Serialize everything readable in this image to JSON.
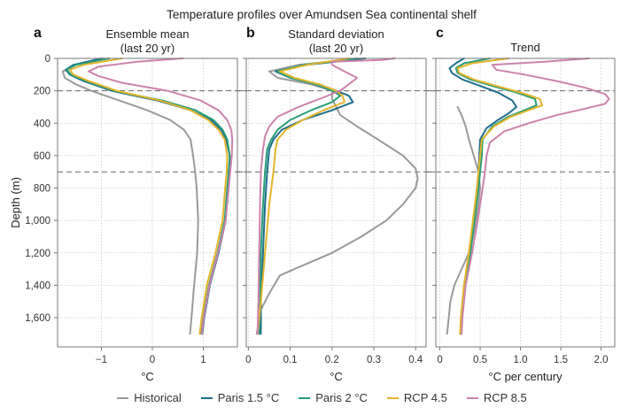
{
  "chart_data": {
    "type": "line",
    "title": "Temperature profiles over Amundsen Sea continental shelf",
    "ylabel": "Depth (m)",
    "ylim": [
      0,
      1780
    ],
    "y_inverted": true,
    "yticks": [
      0,
      200,
      400,
      600,
      800,
      1000,
      1200,
      1400,
      1600
    ],
    "ytick_labels": [
      "0",
      "200",
      "400",
      "600",
      "800",
      "1,000",
      "1,200",
      "1,400",
      "1,600"
    ],
    "reference_lines_depth": [
      200,
      700
    ],
    "grid": true,
    "legend_position": "bottom-center",
    "legend": [
      {
        "name": "Historical",
        "color": "#9a9a9a"
      },
      {
        "name": "Paris 1.5 °C",
        "color": "#1f6e8c"
      },
      {
        "name": "Paris 2 °C",
        "color": "#2a9d7a"
      },
      {
        "name": "RCP 4.5",
        "color": "#e3b52a"
      },
      {
        "name": "RCP 8.5",
        "color": "#cc82ab"
      }
    ],
    "panels": [
      {
        "letter": "a",
        "title": "Ensemble mean\n(last 20 yr)",
        "title_lines": [
          "Ensemble mean",
          "(last 20 yr)"
        ],
        "xlabel": "°C",
        "xlim": [
          -1.86,
          1.67
        ],
        "xticks": [
          -1,
          0,
          1
        ],
        "xtick_labels": [
          "−1",
          "0",
          "1"
        ],
        "series": [
          {
            "name": "Historical",
            "depth": [
              0,
              40,
              80,
              120,
              160,
              200,
              260,
              320,
              380,
              440,
              500,
              600,
              700,
              800,
              1000,
              1200,
              1400,
              1600,
              1700
            ],
            "values": [
              -0.95,
              -1.5,
              -1.76,
              -1.72,
              -1.5,
              -1.2,
              -0.65,
              -0.1,
              0.35,
              0.62,
              0.75,
              0.8,
              0.84,
              0.87,
              0.9,
              0.88,
              0.82,
              0.77,
              0.74
            ]
          },
          {
            "name": "Paris 1.5 °C",
            "depth": [
              0,
              40,
              70,
              100,
              140,
              200,
              260,
              320,
              380,
              440,
              500,
              600,
              700,
              800,
              1000,
              1200,
              1400,
              1600,
              1700
            ],
            "values": [
              -1.0,
              -1.55,
              -1.7,
              -1.62,
              -1.35,
              -0.8,
              0.1,
              0.75,
              1.15,
              1.35,
              1.45,
              1.52,
              1.5,
              1.48,
              1.44,
              1.3,
              1.13,
              1.02,
              0.98
            ]
          },
          {
            "name": "Paris 2 °C",
            "depth": [
              0,
              40,
              70,
              100,
              140,
              200,
              260,
              320,
              380,
              440,
              500,
              600,
              700,
              800,
              1000,
              1200,
              1400,
              1600,
              1700
            ],
            "values": [
              -0.85,
              -1.5,
              -1.68,
              -1.6,
              -1.3,
              -0.75,
              0.2,
              0.85,
              1.2,
              1.38,
              1.47,
              1.52,
              1.5,
              1.47,
              1.42,
              1.28,
              1.11,
              1.0,
              0.96
            ]
          },
          {
            "name": "RCP 4.5",
            "depth": [
              0,
              40,
              70,
              100,
              140,
              200,
              260,
              320,
              380,
              440,
              500,
              600,
              700,
              800,
              1000,
              1200,
              1400,
              1600,
              1700
            ],
            "values": [
              -0.6,
              -1.35,
              -1.62,
              -1.55,
              -1.25,
              -0.7,
              0.15,
              0.75,
              1.1,
              1.3,
              1.42,
              1.47,
              1.46,
              1.43,
              1.38,
              1.24,
              1.07,
              0.97,
              0.93
            ]
          },
          {
            "name": "RCP 8.5",
            "depth": [
              0,
              20,
              50,
              80,
              110,
              150,
              200,
              260,
              320,
              380,
              440,
              500,
              600,
              700,
              800,
              1000,
              1200,
              1400,
              1600,
              1700
            ],
            "values": [
              0.6,
              -0.3,
              -1.05,
              -1.25,
              -1.05,
              -0.6,
              0.3,
              0.95,
              1.3,
              1.47,
              1.55,
              1.57,
              1.56,
              1.53,
              1.5,
              1.44,
              1.29,
              1.12,
              1.01,
              0.97
            ]
          }
        ]
      },
      {
        "letter": "b",
        "title": "Standard deviation\n(last 20 yr)",
        "title_lines": [
          "Standard deviation",
          "(last 20 yr)"
        ],
        "xlabel": "°C",
        "xlim": [
          -0.005,
          0.425
        ],
        "xticks": [
          0,
          0.1,
          0.2,
          0.3,
          0.4
        ],
        "xtick_labels": [
          "0",
          "0.1",
          "0.2",
          "0.3",
          "0.4"
        ],
        "series": [
          {
            "name": "Historical",
            "depth": [
              0,
              40,
              80,
              120,
              160,
              200,
              250,
              300,
              350,
              420,
              500,
              600,
              680,
              740,
              800,
              900,
              1000,
              1100,
              1200,
              1300,
              1340,
              1450,
              1550,
              1700
            ],
            "values": [
              0.27,
              0.12,
              0.05,
              0.07,
              0.15,
              0.2,
              0.2,
              0.21,
              0.22,
              0.26,
              0.31,
              0.37,
              0.4,
              0.405,
              0.4,
              0.37,
              0.33,
              0.27,
              0.2,
              0.11,
              0.075,
              0.05,
              0.03,
              0.02
            ]
          },
          {
            "name": "Paris 1.5 °C",
            "depth": [
              0,
              40,
              80,
              120,
              160,
              200,
              230,
              270,
              320,
              380,
              440,
              500,
              560,
              700,
              900,
              1200,
              1500,
              1700
            ],
            "values": [
              0.28,
              0.14,
              0.065,
              0.1,
              0.17,
              0.21,
              0.24,
              0.25,
              0.2,
              0.13,
              0.08,
              0.06,
              0.05,
              0.045,
              0.04,
              0.035,
              0.03,
              0.03
            ]
          },
          {
            "name": "Paris 2 °C",
            "depth": [
              0,
              40,
              80,
              120,
              160,
              200,
              230,
              270,
              320,
              380,
              440,
              500,
              560,
              700,
              900,
              1200,
              1500,
              1700
            ],
            "values": [
              0.26,
              0.13,
              0.07,
              0.1,
              0.16,
              0.2,
              0.22,
              0.2,
              0.15,
              0.1,
              0.07,
              0.055,
              0.045,
              0.04,
              0.035,
              0.03,
              0.028,
              0.026
            ]
          },
          {
            "name": "RCP 4.5",
            "depth": [
              0,
              40,
              80,
              120,
              160,
              200,
              230,
              270,
              320,
              380,
              440,
              500,
              560,
              700,
              900,
              1200,
              1500,
              1700
            ],
            "values": [
              0.24,
              0.14,
              0.075,
              0.11,
              0.17,
              0.21,
              0.225,
              0.23,
              0.18,
              0.13,
              0.09,
              0.07,
              0.065,
              0.06,
              0.05,
              0.04,
              0.03,
              0.022
            ]
          },
          {
            "name": "RCP 8.5",
            "depth": [
              0,
              10,
              20,
              40,
              80,
              120,
              160,
              200,
              240,
              300,
              360,
              420,
              480,
              560,
              700,
              900,
              1200,
              1500,
              1700
            ],
            "values": [
              0.35,
              0.32,
              0.2,
              0.2,
              0.23,
              0.26,
              0.24,
              0.22,
              0.18,
              0.12,
              0.07,
              0.05,
              0.04,
              0.035,
              0.03,
              0.028,
              0.026,
              0.024,
              0.022
            ]
          }
        ]
      },
      {
        "letter": "c",
        "title": "Trend",
        "title_lines": [
          "Trend"
        ],
        "xlabel": "°C per century",
        "xlim": [
          -0.05,
          2.17
        ],
        "xticks": [
          0,
          0.5,
          1.0,
          1.5,
          2.0
        ],
        "xtick_labels": [
          "0",
          "0.5",
          "1.0",
          "1.5",
          "2.0"
        ],
        "series": [
          {
            "name": "Historical",
            "depth": [
              300,
              350,
              420,
              500,
              600,
              700,
              800,
              900,
              1000,
              1100,
              1200,
              1300,
              1400,
              1500,
              1600,
              1700
            ],
            "values": [
              0.22,
              0.27,
              0.32,
              0.36,
              0.42,
              0.48,
              0.5,
              0.48,
              0.45,
              0.41,
              0.36,
              0.27,
              0.18,
              0.13,
              0.11,
              0.09
            ]
          },
          {
            "name": "Paris 1.5 °C",
            "depth": [
              0,
              30,
              60,
              90,
              130,
              170,
              210,
              260,
              300,
              340,
              380,
              430,
              500,
              600,
              700,
              800,
              1000,
              1200,
              1400,
              1600,
              1700
            ],
            "values": [
              0.3,
              0.2,
              0.12,
              0.15,
              0.28,
              0.5,
              0.72,
              0.9,
              0.95,
              0.85,
              0.72,
              0.58,
              0.5,
              0.49,
              0.48,
              0.46,
              0.42,
              0.37,
              0.3,
              0.27,
              0.26
            ]
          },
          {
            "name": "Paris 2 °C",
            "depth": [
              0,
              30,
              60,
              90,
              130,
              170,
              210,
              250,
              290,
              320,
              360,
              420,
              500,
              600,
              700,
              800,
              1000,
              1200,
              1400,
              1600,
              1700
            ],
            "values": [
              0.62,
              0.3,
              0.2,
              0.22,
              0.38,
              0.65,
              0.95,
              1.18,
              1.2,
              1.05,
              0.85,
              0.65,
              0.53,
              0.52,
              0.5,
              0.48,
              0.43,
              0.38,
              0.31,
              0.27,
              0.26
            ]
          },
          {
            "name": "RCP 4.5",
            "depth": [
              0,
              30,
              60,
              90,
              130,
              170,
              210,
              250,
              290,
              320,
              360,
              420,
              500,
              600,
              700,
              800,
              1000,
              1200,
              1400,
              1600,
              1700
            ],
            "values": [
              0.85,
              0.4,
              0.22,
              0.24,
              0.42,
              0.7,
              1.0,
              1.24,
              1.27,
              1.1,
              0.88,
              0.67,
              0.52,
              0.5,
              0.48,
              0.46,
              0.41,
              0.36,
              0.3,
              0.26,
              0.25
            ]
          },
          {
            "name": "RCP 8.5",
            "depth": [
              0,
              20,
              40,
              70,
              100,
              140,
              180,
              220,
              250,
              280,
              310,
              350,
              400,
              450,
              520,
              600,
              700,
              800,
              1000,
              1200,
              1400,
              1600,
              1700
            ],
            "values": [
              1.85,
              1.3,
              0.65,
              0.7,
              1.05,
              1.45,
              1.8,
              2.05,
              2.1,
              2.05,
              1.8,
              1.45,
              1.1,
              0.8,
              0.62,
              0.58,
              0.56,
              0.53,
              0.47,
              0.4,
              0.32,
              0.28,
              0.27
            ]
          }
        ]
      }
    ]
  }
}
